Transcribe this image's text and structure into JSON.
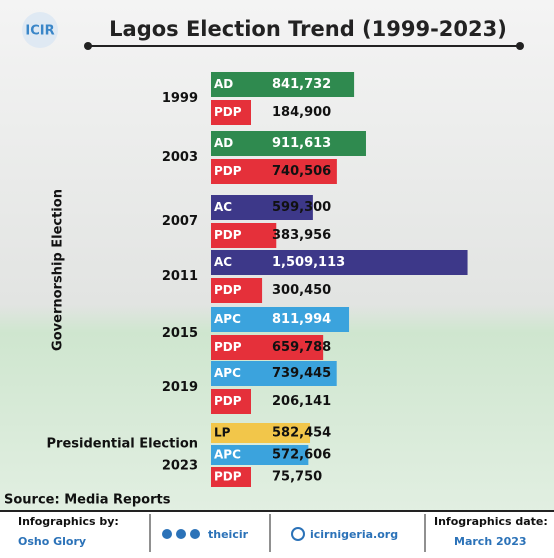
{
  "brand": "ICIR",
  "chart_data": {
    "type": "grouped-hbar",
    "title": "Lagos Election Trend (1999-2023)",
    "y_axis_label": "Governorship Election",
    "xlim": [
      0,
      1600000
    ],
    "groups": [
      {
        "label": "1999",
        "categories": [
          "AD",
          "PDP"
        ],
        "values": [
          841732,
          184900
        ],
        "value_labels": [
          "841,732",
          "184,900"
        ],
        "colors": [
          "#2f8a4f",
          "#e5303a"
        ]
      },
      {
        "label": "2003",
        "categories": [
          "AD",
          "PDP"
        ],
        "values": [
          911613,
          740506
        ],
        "value_labels": [
          "911,613",
          "740,506"
        ],
        "colors": [
          "#2f8a4f",
          "#e5303a"
        ]
      },
      {
        "label": "2007",
        "categories": [
          "AC",
          "PDP"
        ],
        "values": [
          599300,
          383956
        ],
        "value_labels": [
          "599,300",
          "383,956"
        ],
        "colors": [
          "#3d3889",
          "#e5303a"
        ]
      },
      {
        "label": "2011",
        "categories": [
          "AC",
          "PDP"
        ],
        "values": [
          1509113,
          300450
        ],
        "value_labels": [
          "1,509,113",
          "300,450"
        ],
        "colors": [
          "#3d3889",
          "#e5303a"
        ]
      },
      {
        "label": "2015",
        "categories": [
          "APC",
          "PDP"
        ],
        "values": [
          811994,
          659788
        ],
        "value_labels": [
          "811,994",
          "659,788"
        ],
        "colors": [
          "#3ba3dd",
          "#e5303a"
        ]
      },
      {
        "label": "2019",
        "categories": [
          "APC",
          "PDP"
        ],
        "values": [
          739445,
          206141
        ],
        "value_labels": [
          "739,445",
          "206,141"
        ],
        "colors": [
          "#3ba3dd",
          "#e5303a"
        ]
      },
      {
        "label": "Presidential Election",
        "sublabel": "2023",
        "categories": [
          "LP",
          "APC",
          "PDP"
        ],
        "values": [
          582454,
          572606,
          75750
        ],
        "value_labels": [
          "582,454",
          "572,606",
          "75,750"
        ],
        "colors": [
          "#f2c64a",
          "#3ba3dd",
          "#e5303a"
        ]
      }
    ]
  },
  "source": "Source: Media Reports",
  "footer": {
    "credit_label": "Infographics by:",
    "credit_name": "Osho Glory",
    "social": "theicir",
    "website": "icirnigeria.org",
    "date_label": "Infographics date:",
    "date": "March 2023"
  }
}
